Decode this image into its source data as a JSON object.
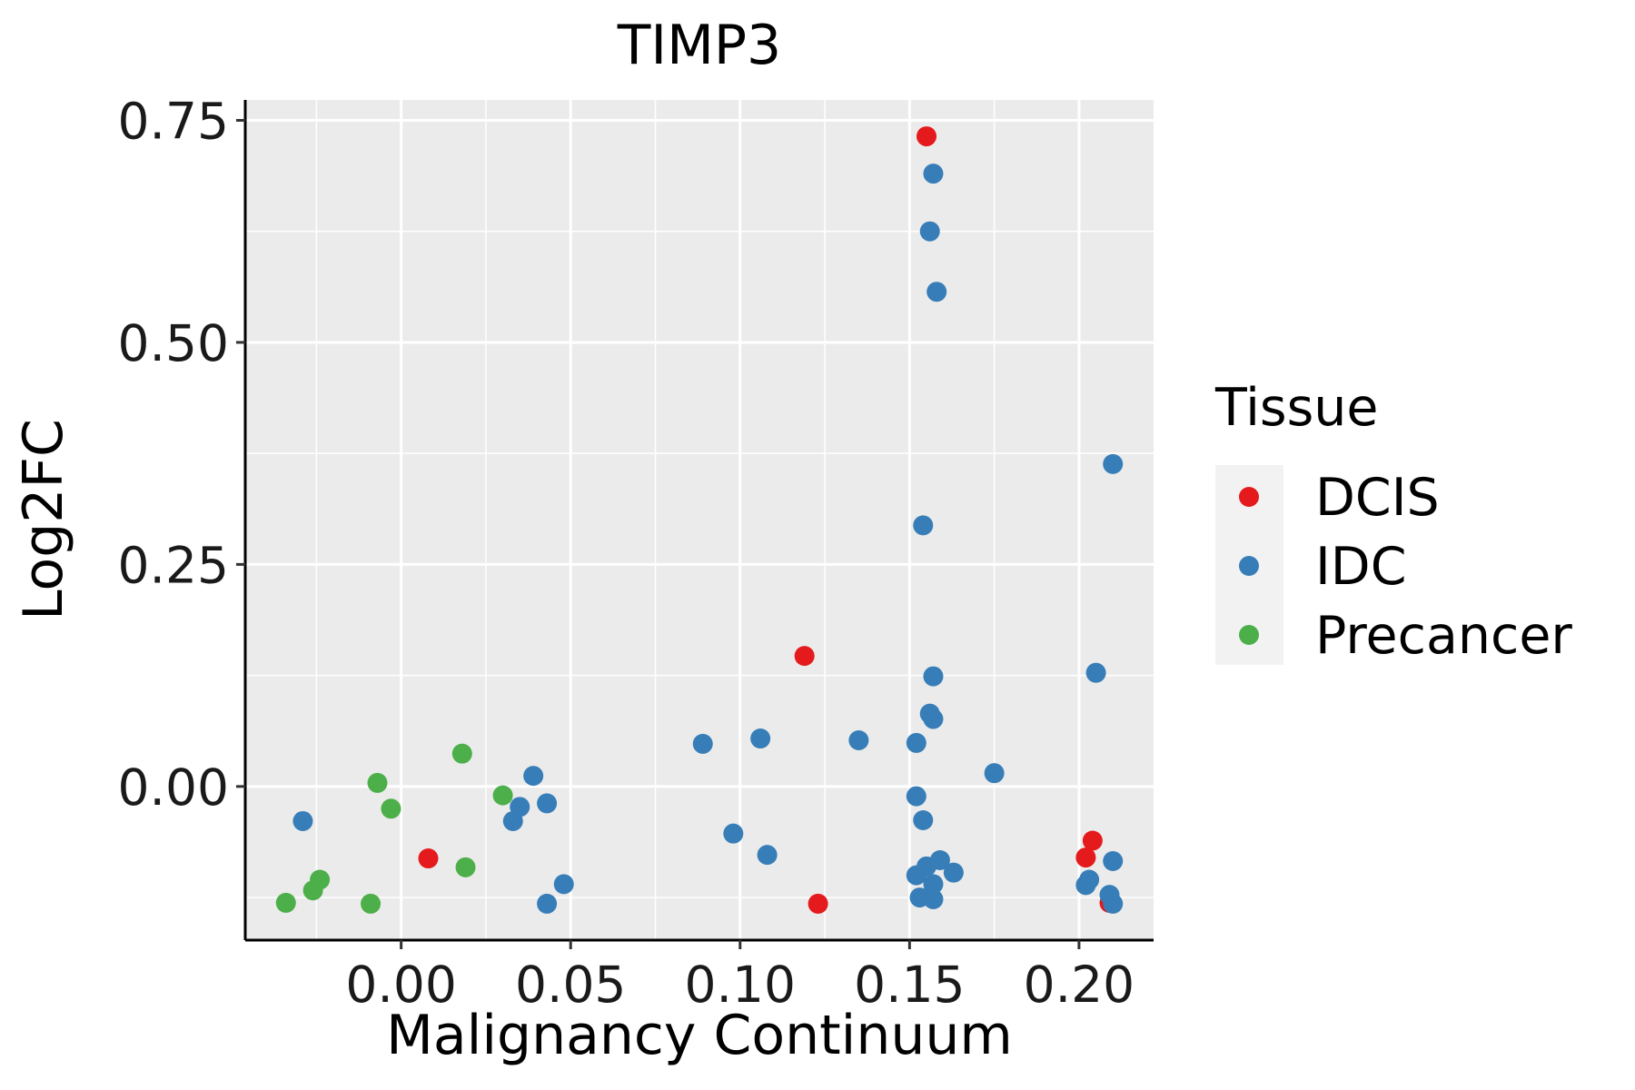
{
  "chart_data": {
    "type": "scatter",
    "title": "TIMP3",
    "xlabel": "Malignancy Continuum",
    "ylabel": "Log2FC",
    "xlim": [
      -0.046,
      0.222
    ],
    "ylim": [
      -0.173,
      0.773
    ],
    "x_ticks": [
      0.0,
      0.05,
      0.1,
      0.15,
      0.2
    ],
    "x_tick_labels": [
      "0.00",
      "0.05",
      "0.10",
      "0.15",
      "0.20"
    ],
    "y_ticks": [
      0.0,
      0.25,
      0.5,
      0.75
    ],
    "y_tick_labels": [
      "0.00",
      "0.25",
      "0.50",
      "0.75"
    ],
    "grid": true,
    "legend": {
      "title": "Tissue",
      "position": "right"
    },
    "series": [
      {
        "name": "DCIS",
        "color": "#E41A1C",
        "points": [
          {
            "x": 0.155,
            "y": 0.732
          },
          {
            "x": 0.119,
            "y": 0.147
          },
          {
            "x": 0.008,
            "y": -0.081
          },
          {
            "x": 0.123,
            "y": -0.132
          },
          {
            "x": 0.204,
            "y": -0.061
          },
          {
            "x": 0.202,
            "y": -0.08
          },
          {
            "x": 0.209,
            "y": -0.131
          }
        ]
      },
      {
        "name": "IDC",
        "color": "#377EB8",
        "points": [
          {
            "x": 0.157,
            "y": 0.69
          },
          {
            "x": 0.156,
            "y": 0.625
          },
          {
            "x": 0.158,
            "y": 0.557
          },
          {
            "x": 0.21,
            "y": 0.363
          },
          {
            "x": 0.154,
            "y": 0.294
          },
          {
            "x": 0.157,
            "y": 0.124
          },
          {
            "x": 0.205,
            "y": 0.128
          },
          {
            "x": 0.156,
            "y": 0.082
          },
          {
            "x": 0.157,
            "y": 0.076
          },
          {
            "x": 0.089,
            "y": 0.048
          },
          {
            "x": 0.106,
            "y": 0.054
          },
          {
            "x": 0.135,
            "y": 0.052
          },
          {
            "x": 0.152,
            "y": 0.049
          },
          {
            "x": 0.175,
            "y": 0.015
          },
          {
            "x": 0.039,
            "y": 0.012
          },
          {
            "x": 0.152,
            "y": -0.011
          },
          {
            "x": 0.154,
            "y": -0.038
          },
          {
            "x": -0.029,
            "y": -0.039
          },
          {
            "x": 0.035,
            "y": -0.023
          },
          {
            "x": 0.043,
            "y": -0.019
          },
          {
            "x": 0.033,
            "y": -0.039
          },
          {
            "x": 0.098,
            "y": -0.053
          },
          {
            "x": 0.108,
            "y": -0.077
          },
          {
            "x": 0.048,
            "y": -0.11
          },
          {
            "x": 0.043,
            "y": -0.132
          },
          {
            "x": 0.152,
            "y": -0.1
          },
          {
            "x": 0.155,
            "y": -0.09
          },
          {
            "x": 0.159,
            "y": -0.083
          },
          {
            "x": 0.163,
            "y": -0.097
          },
          {
            "x": 0.157,
            "y": -0.11
          },
          {
            "x": 0.153,
            "y": -0.125
          },
          {
            "x": 0.157,
            "y": -0.127
          },
          {
            "x": 0.21,
            "y": -0.084
          },
          {
            "x": 0.203,
            "y": -0.105
          },
          {
            "x": 0.202,
            "y": -0.111
          },
          {
            "x": 0.209,
            "y": -0.122
          },
          {
            "x": 0.21,
            "y": -0.132
          }
        ]
      },
      {
        "name": "Precancer",
        "color": "#4DAF4A",
        "points": [
          {
            "x": 0.018,
            "y": 0.037
          },
          {
            "x": -0.007,
            "y": 0.004
          },
          {
            "x": -0.003,
            "y": -0.025
          },
          {
            "x": 0.03,
            "y": -0.01
          },
          {
            "x": 0.019,
            "y": -0.091
          },
          {
            "x": -0.024,
            "y": -0.105
          },
          {
            "x": -0.026,
            "y": -0.117
          },
          {
            "x": -0.034,
            "y": -0.131
          },
          {
            "x": -0.009,
            "y": -0.132
          }
        ]
      }
    ]
  }
}
